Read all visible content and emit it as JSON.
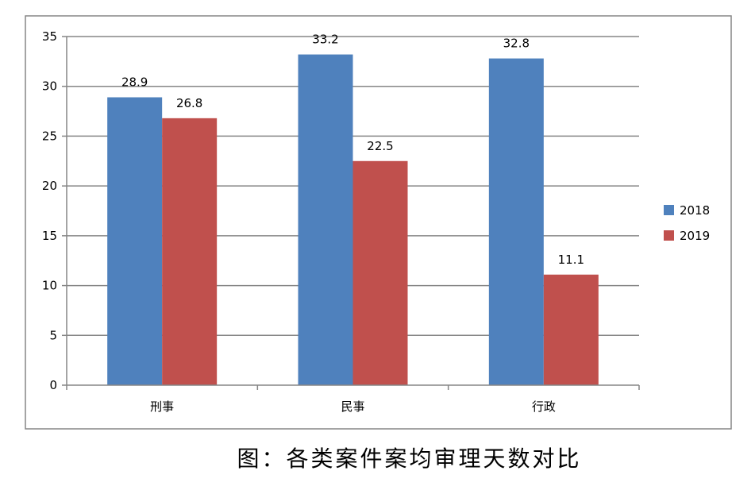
{
  "caption": "图：各类案件案均审理天数对比",
  "colors": {
    "series_2018": "#4F81BD",
    "series_2019": "#C0504D",
    "gridline": "#868686",
    "frame": "#868686"
  },
  "chart_data": {
    "type": "bar",
    "title": "",
    "xlabel": "",
    "ylabel": "",
    "categories": [
      "刑事",
      "民事",
      "行政"
    ],
    "series": [
      {
        "name": "2018",
        "values": [
          28.9,
          33.2,
          32.8
        ],
        "color": "#4F81BD"
      },
      {
        "name": "2019",
        "values": [
          26.8,
          22.5,
          11.1
        ],
        "color": "#C0504D"
      }
    ],
    "data_labels": [
      [
        "28.9",
        "33.2",
        "32.8"
      ],
      [
        "26.8",
        "22.5",
        "11.1"
      ]
    ],
    "ylim": [
      0,
      35
    ],
    "yticks": [
      0,
      5,
      10,
      15,
      20,
      25,
      30,
      35
    ],
    "grid": true,
    "legend": "right"
  }
}
